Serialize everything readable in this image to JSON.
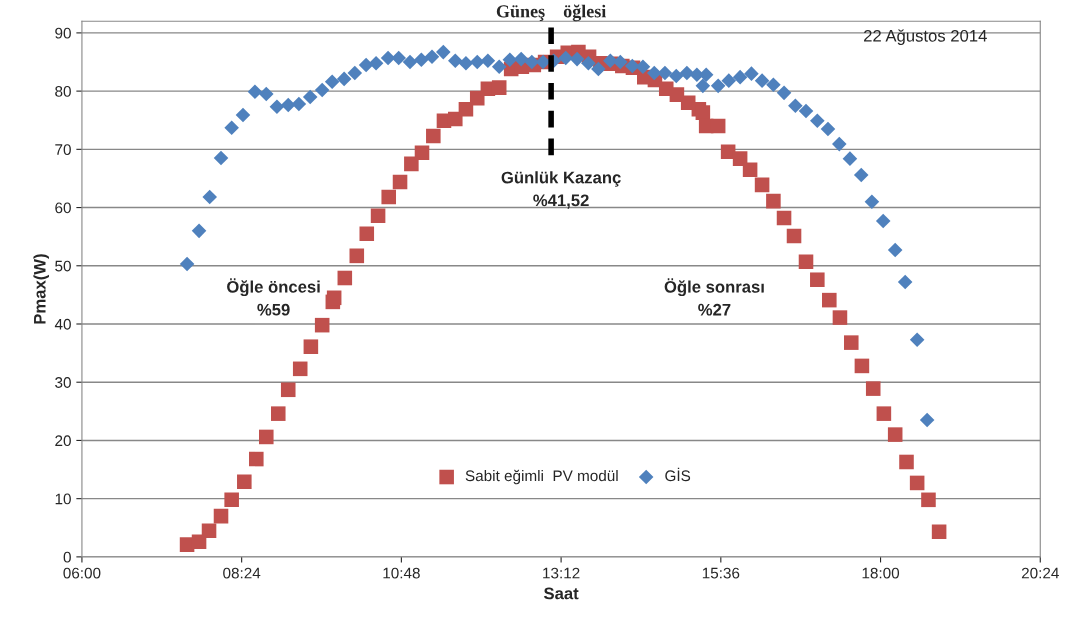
{
  "chart_data": {
    "type": "scatter",
    "xlabel": "Saat",
    "ylabel": "Pmax(W)",
    "xlim": [
      6,
      20.4
    ],
    "xticks": [
      {
        "value": 6,
        "label": "06:00"
      },
      {
        "value": 8.4,
        "label": "08:24"
      },
      {
        "value": 10.8,
        "label": "10:48"
      },
      {
        "value": 13.2,
        "label": "13:12"
      },
      {
        "value": 15.6,
        "label": "15:36"
      },
      {
        "value": 18,
        "label": "18:00"
      },
      {
        "value": 20.4,
        "label": "20:24"
      }
    ],
    "ylim": [
      0,
      92
    ],
    "yticks": [
      0,
      10,
      20,
      30,
      40,
      50,
      60,
      70,
      80,
      90
    ],
    "grid": "y",
    "legend": "bottom",
    "series": [
      {
        "name": "Sabit eğimli  PV modül",
        "color": "#c0504d",
        "marker": "square",
        "x": [
          7.58,
          7.76,
          7.91,
          8.09,
          8.25,
          8.44,
          8.62,
          8.77,
          8.95,
          9.1,
          9.28,
          9.44,
          9.61,
          9.77,
          9.79,
          9.95,
          10.13,
          10.28,
          10.45,
          10.61,
          10.78,
          10.95,
          11.11,
          11.28,
          11.44,
          11.61,
          11.77,
          11.94,
          12.1,
          12.27,
          12.45,
          12.61,
          12.79,
          12.96,
          13.14,
          13.3,
          13.46,
          13.62,
          13.79,
          13.95,
          14.12,
          14.28,
          14.45,
          14.61,
          14.78,
          14.94,
          15.11,
          15.27,
          15.33,
          15.38,
          15.56,
          15.71,
          15.89,
          16.04,
          16.22,
          16.39,
          16.55,
          16.7,
          16.88,
          17.05,
          17.23,
          17.39,
          17.56,
          17.72,
          17.89,
          18.05,
          18.22,
          18.39,
          18.55,
          18.72,
          18.88
        ],
        "values": [
          2.1,
          2.6,
          4.5,
          7.0,
          9.8,
          12.9,
          16.8,
          20.6,
          24.6,
          28.7,
          32.3,
          36.1,
          39.8,
          43.8,
          44.5,
          47.9,
          51.7,
          55.5,
          58.6,
          61.8,
          64.4,
          67.5,
          69.4,
          72.3,
          74.9,
          75.2,
          76.9,
          78.8,
          80.4,
          80.6,
          83.8,
          84.2,
          84.5,
          85.0,
          85.9,
          86.6,
          86.7,
          85.9,
          84.8,
          84.7,
          84.3,
          84.0,
          82.4,
          81.9,
          80.4,
          79.4,
          78.0,
          76.9,
          76.3,
          74.0,
          74.0,
          69.6,
          68.4,
          66.5,
          63.9,
          61.1,
          58.2,
          55.1,
          50.7,
          47.6,
          44.1,
          41.1,
          36.8,
          32.8,
          28.9,
          24.6,
          21.0,
          16.3,
          12.7,
          9.8,
          4.3
        ]
      },
      {
        "name": "GİS",
        "color": "#4f81bd",
        "marker": "diamond",
        "x": [
          7.58,
          7.76,
          7.92,
          8.09,
          8.25,
          8.42,
          8.6,
          8.77,
          8.93,
          9.1,
          9.26,
          9.43,
          9.61,
          9.76,
          9.94,
          10.1,
          10.27,
          10.42,
          10.6,
          10.76,
          10.93,
          11.1,
          11.26,
          11.43,
          11.61,
          11.77,
          11.94,
          12.1,
          12.27,
          12.43,
          12.6,
          12.76,
          12.93,
          13.09,
          13.27,
          13.44,
          13.61,
          13.76,
          13.94,
          14.09,
          14.27,
          14.43,
          14.6,
          14.76,
          14.93,
          15.09,
          15.24,
          15.33,
          15.38,
          15.56,
          15.72,
          15.89,
          16.06,
          16.22,
          16.39,
          16.55,
          16.72,
          16.88,
          17.05,
          17.21,
          17.38,
          17.54,
          17.71,
          17.87,
          18.04,
          18.22,
          18.37,
          18.55,
          18.7
        ],
        "values": [
          50.3,
          56.0,
          61.8,
          68.5,
          73.7,
          75.9,
          79.9,
          79.5,
          77.3,
          77.6,
          77.8,
          79.0,
          80.2,
          81.6,
          82.1,
          83.1,
          84.5,
          84.8,
          85.7,
          85.7,
          85.0,
          85.4,
          85.9,
          86.7,
          85.2,
          84.8,
          85.0,
          85.2,
          84.2,
          85.4,
          85.5,
          85.0,
          85.0,
          85.2,
          85.7,
          85.5,
          84.8,
          83.8,
          85.2,
          85.0,
          84.3,
          84.2,
          83.1,
          83.1,
          82.6,
          83.1,
          82.8,
          80.9,
          82.8,
          80.9,
          81.8,
          82.4,
          83.0,
          81.8,
          81.1,
          79.7,
          77.5,
          76.6,
          74.9,
          73.5,
          70.9,
          68.4,
          65.6,
          61.0,
          57.7,
          52.7,
          47.2,
          37.3,
          23.5
        ]
      }
    ],
    "ref_lines": [
      {
        "axis": "x",
        "value": 13.05,
        "label": "Güneş    öğlesi",
        "color": "#000000",
        "line_style": "dashed"
      }
    ],
    "annotations": [
      "22 Ağustos 2014",
      "Günlük Kazanç\n%41,52",
      "Öğle öncesi\n%59",
      "Öğle sonrası\n%27"
    ]
  }
}
